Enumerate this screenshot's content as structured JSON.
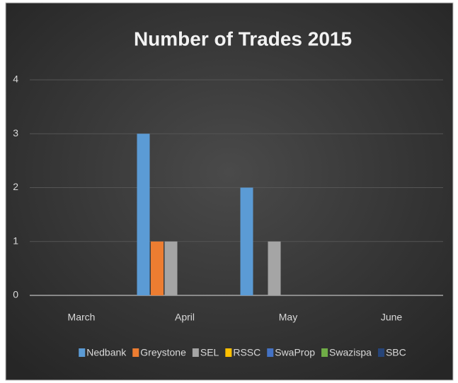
{
  "chart_data": {
    "type": "bar",
    "title": "Number of Trades 2015",
    "categories": [
      "March",
      "April",
      "May",
      "June"
    ],
    "series": [
      {
        "name": "Nedbank",
        "color": "#5b9bd5",
        "values": [
          0,
          3,
          2,
          0
        ]
      },
      {
        "name": "Greystone",
        "color": "#ed7d31",
        "values": [
          0,
          1,
          0,
          0
        ]
      },
      {
        "name": "SEL",
        "color": "#a5a5a5",
        "values": [
          0,
          1,
          1,
          0
        ]
      },
      {
        "name": "RSSC",
        "color": "#ffc000",
        "values": [
          0,
          0,
          0,
          0
        ]
      },
      {
        "name": "SwaProp",
        "color": "#4472c4",
        "values": [
          0,
          0,
          0,
          0
        ]
      },
      {
        "name": "Swazispa",
        "color": "#70ad47",
        "values": [
          0,
          0,
          0,
          0
        ]
      },
      {
        "name": "SBC",
        "color": "#264478",
        "values": [
          0,
          0,
          0,
          0
        ]
      }
    ],
    "ylim": [
      0,
      4
    ],
    "yticks": [
      0,
      1,
      2,
      3,
      4
    ],
    "grid": true,
    "legend": "bottom"
  }
}
